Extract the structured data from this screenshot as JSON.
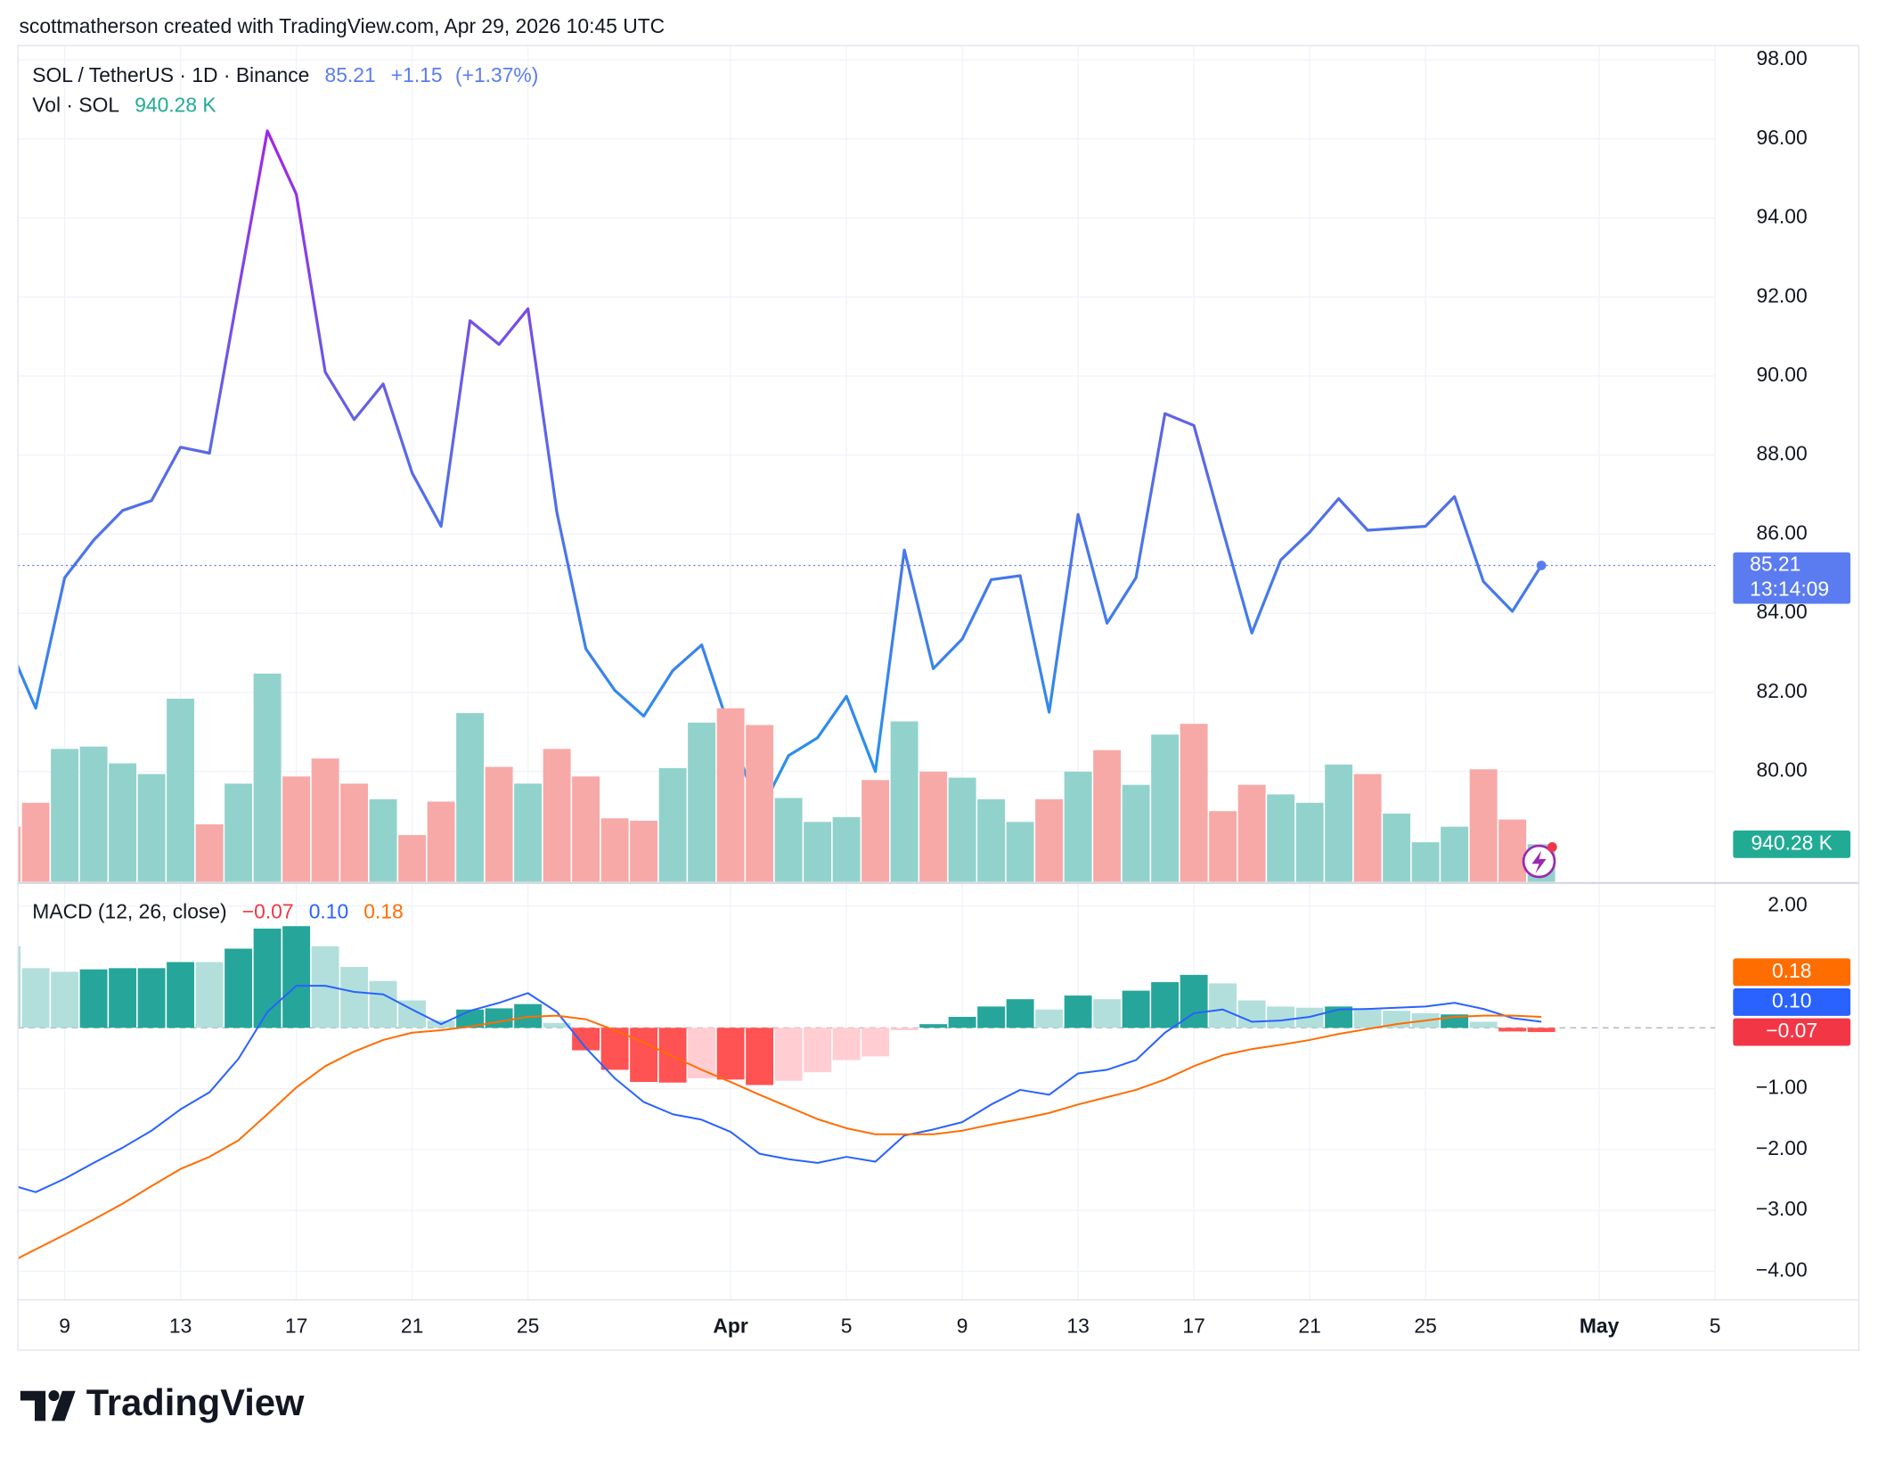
{
  "header": {
    "credit": "scottmatherson created with TradingView.com, Apr 29, 2026 10:45 UTC",
    "logo": "TradingView"
  },
  "chart_data": [
    {
      "type": "line",
      "title": "SOL / TetherUS · 1D · Binance",
      "change": "+1.15",
      "change_pct": "(+1.37%)",
      "countdown": "13:14:09",
      "categories": [
        null,
        null,
        "9",
        null,
        null,
        null,
        "13",
        null,
        null,
        null,
        "17",
        null,
        null,
        null,
        "21",
        null,
        null,
        null,
        "25",
        null,
        null,
        null,
        null,
        null,
        null,
        "Apr",
        null,
        null,
        null,
        "5",
        null,
        null,
        null,
        "9",
        null,
        null,
        null,
        "13",
        null,
        null,
        null,
        "17",
        null,
        null,
        null,
        "21",
        null,
        null,
        null,
        "25",
        null,
        null,
        null,
        null,
        null,
        "May",
        null,
        null,
        null,
        "5"
      ],
      "values": [
        83.3,
        81.6,
        84.9,
        85.85,
        86.6,
        86.85,
        88.2,
        88.05,
        92.15,
        96.2,
        94.6,
        90.1,
        88.9,
        89.8,
        87.55,
        86.2,
        91.4,
        90.8,
        91.7,
        86.55,
        83.1,
        82.05,
        81.4,
        82.55,
        83.2,
        81.0,
        78.95,
        80.4,
        80.85,
        81.9,
        80.0,
        85.6,
        82.6,
        83.35,
        84.85,
        84.95,
        81.5,
        86.5,
        83.75,
        84.9,
        89.05,
        88.75,
        86.1,
        83.5,
        85.35,
        86.05,
        86.9,
        86.1,
        86.15,
        86.2,
        86.95,
        84.8,
        84.05,
        85.21,
        null,
        null,
        null,
        null,
        null,
        null
      ],
      "gradient": [
        "#a026e6",
        "#5b68e6",
        "#2a90ee"
      ],
      "last_color": "#5b7cf0",
      "ylim": [
        77.18,
        98.36
      ],
      "yticks": [
        {
          "value": 80,
          "label": "80.00"
        },
        {
          "value": 82,
          "label": "82.00"
        },
        {
          "value": 84,
          "label": "84.00"
        },
        {
          "value": 86,
          "label": "86.00"
        },
        {
          "value": 88,
          "label": "88.00"
        },
        {
          "value": 90,
          "label": "90.00"
        },
        {
          "value": 92,
          "label": "92.00"
        },
        {
          "value": 94,
          "label": "94.00"
        },
        {
          "value": 96,
          "label": "96.00"
        },
        {
          "value": 98,
          "label": "98.00"
        }
      ],
      "grid": true
    },
    {
      "type": "bar",
      "title": "Vol · SOL",
      "values": [
        1380,
        1980,
        3330,
        3390,
        2970,
        2700,
        4590,
        1440,
        2460,
        5220,
        2640,
        3090,
        2460,
        2070,
        1170,
        2010,
        4230,
        2880,
        2460,
        3330,
        2640,
        1590,
        1530,
        2850,
        3990,
        4350,
        3930,
        2100,
        1500,
        1620,
        2550,
        4020,
        2760,
        2610,
        2070,
        1500,
        2070,
        2760,
        3300,
        2430,
        3690,
        3960,
        1770,
        2430,
        2190,
        1980,
        2940,
        2700,
        1710,
        990,
        1380,
        2820,
        1560,
        940.28,
        null,
        null,
        null,
        null,
        null,
        null
      ],
      "colors": [
        "#f7a9a7",
        "#f7a9a7",
        "#92d2cc",
        "#92d2cc",
        "#92d2cc",
        "#92d2cc",
        "#92d2cc",
        "#f7a9a7",
        "#92d2cc",
        "#92d2cc",
        "#f7a9a7",
        "#f7a9a7",
        "#f7a9a7",
        "#92d2cc",
        "#f7a9a7",
        "#f7a9a7",
        "#92d2cc",
        "#f7a9a7",
        "#92d2cc",
        "#f7a9a7",
        "#f7a9a7",
        "#f7a9a7",
        "#f7a9a7",
        "#92d2cc",
        "#92d2cc",
        "#f7a9a7",
        "#f7a9a7",
        "#92d2cc",
        "#92d2cc",
        "#92d2cc",
        "#f7a9a7",
        "#92d2cc",
        "#f7a9a7",
        "#92d2cc",
        "#92d2cc",
        "#92d2cc",
        "#f7a9a7",
        "#92d2cc",
        "#f7a9a7",
        "#92d2cc",
        "#92d2cc",
        "#f7a9a7",
        "#f7a9a7",
        "#f7a9a7",
        "#92d2cc",
        "#92d2cc",
        "#92d2cc",
        "#f7a9a7",
        "#92d2cc",
        "#92d2cc",
        "#92d2cc",
        "#f7a9a7",
        "#f7a9a7",
        "#92d2cc",
        null,
        null,
        null,
        null,
        null,
        null
      ],
      "value_labels": [
        null,
        null,
        null,
        null,
        null,
        null,
        null,
        null,
        null,
        null,
        null,
        null,
        null,
        null,
        null,
        null,
        null,
        null,
        null,
        null,
        null,
        null,
        null,
        null,
        null,
        null,
        null,
        null,
        null,
        null,
        null,
        null,
        null,
        null,
        null,
        null,
        null,
        null,
        null,
        null,
        null,
        null,
        null,
        null,
        null,
        null,
        null,
        null,
        null,
        null,
        null,
        null,
        null,
        "940.28 K",
        null,
        null,
        null,
        null,
        null,
        null
      ],
      "label_color": "#22ab94",
      "ylim": [
        0,
        21000
      ]
    },
    {
      "type": "combo",
      "title": "MACD (12, 26, close)",
      "series": [
        {
          "kind": "bar",
          "values": [
            1.34,
            0.98,
            0.92,
            0.96,
            0.98,
            0.98,
            1.08,
            1.08,
            1.3,
            1.63,
            1.67,
            1.34,
            1.0,
            0.77,
            0.45,
            0.12,
            0.3,
            0.32,
            0.39,
            0.08,
            -0.37,
            -0.69,
            -0.89,
            -0.9,
            -0.83,
            -0.85,
            -0.94,
            -0.87,
            -0.73,
            -0.53,
            -0.47,
            -0.04,
            0.06,
            0.18,
            0.35,
            0.47,
            0.3,
            0.53,
            0.47,
            0.61,
            0.75,
            0.87,
            0.73,
            0.45,
            0.35,
            0.33,
            0.35,
            0.3,
            0.28,
            0.24,
            0.22,
            0.1,
            -0.06,
            -0.07,
            null,
            null,
            null,
            null,
            null,
            null
          ],
          "colors": [
            "#b2dfdb",
            "#b2dfdb",
            "#b2dfdb",
            "#26a69a",
            "#26a69a",
            "#26a69a",
            "#26a69a",
            "#b2dfdb",
            "#26a69a",
            "#26a69a",
            "#26a69a",
            "#b2dfdb",
            "#b2dfdb",
            "#b2dfdb",
            "#b2dfdb",
            "#b2dfdb",
            "#26a69a",
            "#26a69a",
            "#26a69a",
            "#b2dfdb",
            "#ff5252",
            "#ff5252",
            "#ff5252",
            "#ff5252",
            "#ffcdd2",
            "#ff5252",
            "#ff5252",
            "#ffcdd2",
            "#ffcdd2",
            "#ffcdd2",
            "#ffcdd2",
            "#ffcdd2",
            "#26a69a",
            "#26a69a",
            "#26a69a",
            "#26a69a",
            "#b2dfdb",
            "#26a69a",
            "#b2dfdb",
            "#26a69a",
            "#26a69a",
            "#26a69a",
            "#b2dfdb",
            "#b2dfdb",
            "#b2dfdb",
            "#b2dfdb",
            "#26a69a",
            "#b2dfdb",
            "#b2dfdb",
            "#b2dfdb",
            "#26a69a",
            "#b2dfdb",
            "#ff5252",
            "#ff5252",
            null,
            null,
            null,
            null,
            null,
            null
          ],
          "value_labels": [
            null,
            null,
            null,
            null,
            null,
            null,
            null,
            null,
            null,
            null,
            null,
            null,
            null,
            null,
            null,
            null,
            null,
            null,
            null,
            null,
            null,
            null,
            null,
            null,
            null,
            null,
            null,
            null,
            null,
            null,
            null,
            null,
            null,
            null,
            null,
            null,
            null,
            null,
            null,
            null,
            null,
            null,
            null,
            null,
            null,
            null,
            null,
            null,
            null,
            null,
            null,
            null,
            null,
            "−0.07",
            null,
            null,
            null,
            null,
            null,
            null
          ],
          "label_color": "#f23645"
        },
        {
          "kind": "line",
          "color": "#2962ff",
          "values": [
            -2.56,
            -2.7,
            -2.48,
            -2.22,
            -1.97,
            -1.69,
            -1.34,
            -1.06,
            -0.51,
            0.26,
            0.69,
            0.69,
            0.59,
            0.55,
            0.3,
            0.06,
            0.28,
            0.41,
            0.57,
            0.26,
            -0.33,
            -0.83,
            -1.22,
            -1.42,
            -1.51,
            -1.71,
            -2.07,
            -2.16,
            -2.22,
            -2.12,
            -2.2,
            -1.77,
            -1.67,
            -1.55,
            -1.26,
            -1.02,
            -1.1,
            -0.75,
            -0.69,
            -0.53,
            -0.08,
            0.24,
            0.3,
            0.1,
            0.12,
            0.18,
            0.3,
            0.31,
            0.33,
            0.35,
            0.41,
            0.31,
            0.16,
            0.1,
            null,
            null,
            null,
            null,
            null,
            null
          ],
          "value_labels": [
            null,
            null,
            null,
            null,
            null,
            null,
            null,
            null,
            null,
            null,
            null,
            null,
            null,
            null,
            null,
            null,
            null,
            null,
            null,
            null,
            null,
            null,
            null,
            null,
            null,
            null,
            null,
            null,
            null,
            null,
            null,
            null,
            null,
            null,
            null,
            null,
            null,
            null,
            null,
            null,
            null,
            null,
            null,
            null,
            null,
            null,
            null,
            null,
            null,
            null,
            null,
            null,
            null,
            "0.10",
            null,
            null,
            null,
            null,
            null,
            null
          ]
        },
        {
          "kind": "line",
          "color": "#ff6d00",
          "values": [
            -3.88,
            -3.64,
            -3.4,
            -3.15,
            -2.89,
            -2.6,
            -2.32,
            -2.12,
            -1.85,
            -1.42,
            -0.98,
            -0.63,
            -0.39,
            -0.2,
            -0.08,
            -0.04,
            0.02,
            0.1,
            0.18,
            0.2,
            0.14,
            -0.04,
            -0.24,
            -0.47,
            -0.69,
            -0.89,
            -1.1,
            -1.3,
            -1.5,
            -1.65,
            -1.75,
            -1.75,
            -1.75,
            -1.69,
            -1.59,
            -1.5,
            -1.4,
            -1.26,
            -1.14,
            -1.02,
            -0.85,
            -0.63,
            -0.45,
            -0.35,
            -0.28,
            -0.2,
            -0.1,
            -0.02,
            0.06,
            0.12,
            0.18,
            0.2,
            0.2,
            0.18,
            null,
            null,
            null,
            null,
            null,
            null
          ]
        }
      ],
      "ylim": [
        -4.47,
        2.38
      ],
      "yticks": [
        {
          "value": -4,
          "label": "−4.00"
        },
        {
          "value": -3,
          "label": "−3.00"
        },
        {
          "value": -2,
          "label": "−2.00"
        },
        {
          "value": -1,
          "label": "−1.00"
        },
        {
          "value": 2,
          "label": "2.00"
        }
      ],
      "zero_line": true,
      "grid": true
    }
  ]
}
